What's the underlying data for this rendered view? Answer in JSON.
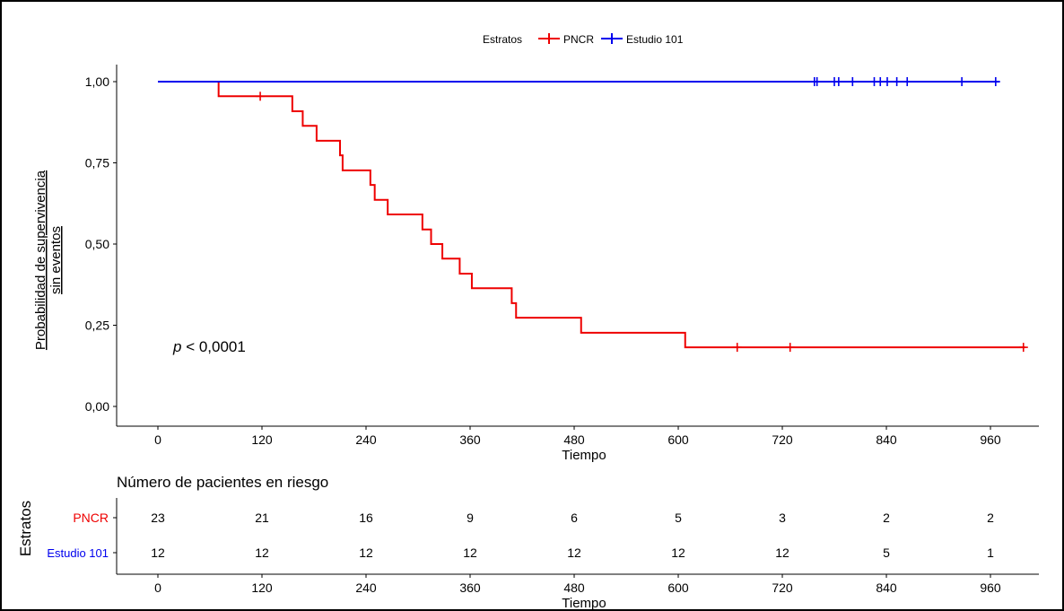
{
  "chart_data": [
    {
      "type": "line",
      "subtype": "kaplan-meier",
      "ylabel_lines": [
        "Probabilidad de supervivencia",
        "sin eventos"
      ],
      "xlabel": "Tiempo",
      "xlim": [
        0,
        1000
      ],
      "ylim": [
        0,
        1
      ],
      "xticks": [
        0,
        120,
        240,
        360,
        480,
        600,
        720,
        840,
        960
      ],
      "xtick_labels": [
        "0",
        "120",
        "240",
        "360",
        "480",
        "600",
        "720",
        "840",
        "960"
      ],
      "yticks": [
        0,
        0.25,
        0.5,
        0.75,
        1
      ],
      "ytick_labels": [
        "0,00",
        "0,25",
        "0,50",
        "0,75",
        "1,00"
      ],
      "legend": {
        "title": "Estratos",
        "placement": "top",
        "entries": [
          "PNCR",
          "Estudio 101"
        ]
      },
      "annotation": {
        "prefix": "p",
        "text": " < 0,0001"
      },
      "grid": false,
      "series": [
        {
          "name": "PNCR",
          "color": "#ee0000",
          "steps": [
            [
              0,
              1.0
            ],
            [
              70,
              0.955
            ],
            [
              155,
              0.909
            ],
            [
              167,
              0.864
            ],
            [
              183,
              0.818
            ],
            [
              210,
              0.773
            ],
            [
              213,
              0.727
            ],
            [
              245,
              0.682
            ],
            [
              250,
              0.636
            ],
            [
              265,
              0.591
            ],
            [
              305,
              0.545
            ],
            [
              315,
              0.5
            ],
            [
              328,
              0.455
            ],
            [
              348,
              0.409
            ],
            [
              362,
              0.364
            ],
            [
              408,
              0.318
            ],
            [
              413,
              0.273
            ],
            [
              488,
              0.227
            ],
            [
              608,
              0.182
            ],
            [
              1000,
              0.182
            ]
          ],
          "censor_times": [
            118,
            668,
            729,
            998
          ],
          "censor_values": [
            0.955,
            0.182,
            0.182,
            0.182
          ]
        },
        {
          "name": "Estudio 101",
          "color": "#0000ee",
          "steps": [
            [
              0,
              1.0
            ],
            [
              970,
              1.0
            ]
          ],
          "censor_times": [
            757,
            760,
            780,
            785,
            801,
            826,
            833,
            841,
            852,
            864,
            927,
            966
          ],
          "censor_values": [
            1,
            1,
            1,
            1,
            1,
            1,
            1,
            1,
            1,
            1,
            1,
            1
          ]
        }
      ]
    },
    {
      "type": "table",
      "title": "Número de pacientes en riesgo",
      "ylabel": "Estratos",
      "xlabel": "Tiempo",
      "columns": [
        0,
        120,
        240,
        360,
        480,
        600,
        720,
        840,
        960
      ],
      "xtick_labels": [
        "0",
        "120",
        "240",
        "360",
        "480",
        "600",
        "720",
        "840",
        "960"
      ],
      "rows": [
        {
          "label": "PNCR",
          "color": "#ee0000",
          "values": [
            "23",
            "21",
            "16",
            "9",
            "6",
            "5",
            "3",
            "2",
            "2"
          ]
        },
        {
          "label": "Estudio 101",
          "color": "#0000ee",
          "values": [
            "12",
            "12",
            "12",
            "12",
            "12",
            "12",
            "12",
            "5",
            "1"
          ]
        }
      ]
    }
  ]
}
